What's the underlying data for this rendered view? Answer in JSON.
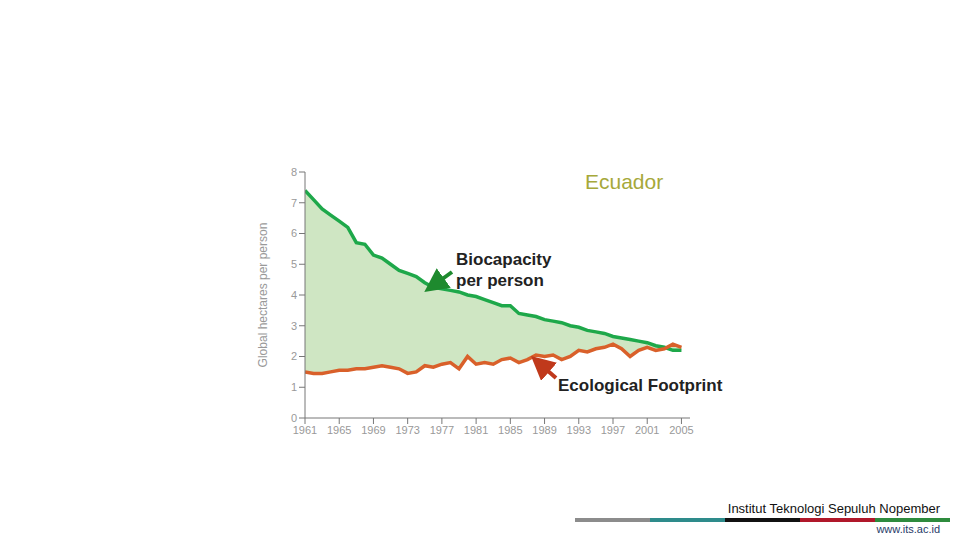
{
  "chart_data": {
    "type": "line",
    "title": "Ecuador",
    "y_label": "Global hectares per person",
    "x": [
      1961,
      1962,
      1963,
      1964,
      1965,
      1966,
      1967,
      1968,
      1969,
      1970,
      1971,
      1972,
      1973,
      1974,
      1975,
      1976,
      1977,
      1978,
      1979,
      1980,
      1981,
      1982,
      1983,
      1984,
      1985,
      1986,
      1987,
      1988,
      1989,
      1990,
      1991,
      1992,
      1993,
      1994,
      1995,
      1996,
      1997,
      1998,
      1999,
      2000,
      2001,
      2002,
      2003,
      2004,
      2005
    ],
    "series": [
      {
        "name": "Biocapacity per person",
        "color": "#1ea84a",
        "values": [
          7.4,
          7.1,
          6.8,
          6.6,
          6.4,
          6.2,
          5.7,
          5.65,
          5.3,
          5.2,
          5.0,
          4.8,
          4.7,
          4.6,
          4.4,
          4.25,
          4.2,
          4.15,
          4.1,
          4.0,
          3.95,
          3.85,
          3.75,
          3.65,
          3.65,
          3.4,
          3.35,
          3.3,
          3.2,
          3.15,
          3.1,
          3.0,
          2.95,
          2.85,
          2.8,
          2.75,
          2.65,
          2.6,
          2.55,
          2.5,
          2.45,
          2.35,
          2.3,
          2.2,
          2.2
        ]
      },
      {
        "name": "Ecological Footprint",
        "color": "#d9602a",
        "values": [
          1.5,
          1.45,
          1.45,
          1.5,
          1.55,
          1.55,
          1.6,
          1.6,
          1.65,
          1.7,
          1.65,
          1.6,
          1.45,
          1.5,
          1.7,
          1.65,
          1.75,
          1.8,
          1.6,
          2.0,
          1.75,
          1.8,
          1.75,
          1.9,
          1.95,
          1.8,
          1.9,
          2.05,
          2.0,
          2.05,
          1.9,
          2.0,
          2.2,
          2.15,
          2.25,
          2.3,
          2.4,
          2.25,
          2.0,
          2.2,
          2.3,
          2.2,
          2.25,
          2.4,
          2.3
        ]
      }
    ],
    "xlim": [
      1961,
      2006
    ],
    "xticks": [
      1961,
      1965,
      1969,
      1973,
      1977,
      1981,
      1985,
      1989,
      1993,
      1997,
      2001,
      2005
    ],
    "ylim": [
      0,
      8
    ],
    "yticks": [
      0,
      1,
      2,
      3,
      4,
      5,
      6,
      7,
      8
    ],
    "grid": false
  },
  "footer": {
    "institution": "Institut Teknologi Sepuluh Nopember",
    "url": "www.its.ac.id"
  }
}
